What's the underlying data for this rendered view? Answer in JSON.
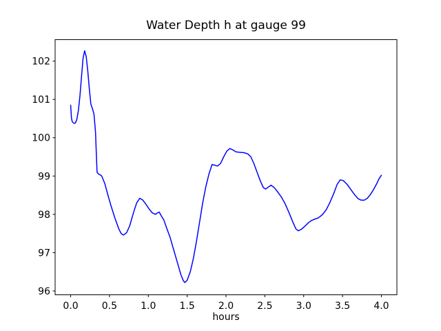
{
  "chart_data": {
    "type": "line",
    "title": "Water Depth h at gauge 99",
    "xlabel": "hours",
    "ylabel": "",
    "grid": false,
    "legend": "none",
    "line_color": "#0000ff",
    "axis_color": "#000000",
    "xlim": [
      -0.2,
      4.2
    ],
    "ylim": [
      95.9,
      102.56
    ],
    "x_ticks": [
      "0.0",
      "0.5",
      "1.0",
      "1.5",
      "2.0",
      "2.5",
      "3.0",
      "3.5",
      "4.0"
    ],
    "x_tick_values": [
      0.0,
      0.5,
      1.0,
      1.5,
      2.0,
      2.5,
      3.0,
      3.5,
      4.0
    ],
    "y_ticks": [
      "96",
      "97",
      "98",
      "99",
      "100",
      "101",
      "102"
    ],
    "y_tick_values": [
      96,
      97,
      98,
      99,
      100,
      101,
      102
    ],
    "series": [
      {
        "name": "h",
        "points": [
          [
            0.0,
            100.85
          ],
          [
            0.01,
            100.52
          ],
          [
            0.02,
            100.42
          ],
          [
            0.04,
            100.38
          ],
          [
            0.06,
            100.38
          ],
          [
            0.08,
            100.48
          ],
          [
            0.1,
            100.72
          ],
          [
            0.12,
            101.1
          ],
          [
            0.14,
            101.6
          ],
          [
            0.16,
            102.08
          ],
          [
            0.18,
            102.27
          ],
          [
            0.2,
            102.12
          ],
          [
            0.22,
            101.75
          ],
          [
            0.24,
            101.28
          ],
          [
            0.26,
            100.88
          ],
          [
            0.28,
            100.76
          ],
          [
            0.3,
            100.62
          ],
          [
            0.32,
            100.15
          ],
          [
            0.33,
            99.6
          ],
          [
            0.34,
            99.1
          ],
          [
            0.36,
            99.05
          ],
          [
            0.38,
            99.03
          ],
          [
            0.4,
            99.0
          ],
          [
            0.44,
            98.8
          ],
          [
            0.48,
            98.5
          ],
          [
            0.52,
            98.22
          ],
          [
            0.57,
            97.9
          ],
          [
            0.62,
            97.62
          ],
          [
            0.65,
            97.5
          ],
          [
            0.68,
            97.46
          ],
          [
            0.72,
            97.52
          ],
          [
            0.76,
            97.7
          ],
          [
            0.81,
            98.05
          ],
          [
            0.85,
            98.3
          ],
          [
            0.89,
            98.42
          ],
          [
            0.93,
            98.37
          ],
          [
            0.97,
            98.26
          ],
          [
            1.01,
            98.14
          ],
          [
            1.05,
            98.04
          ],
          [
            1.09,
            98.0
          ],
          [
            1.12,
            98.04
          ],
          [
            1.14,
            98.06
          ],
          [
            1.17,
            97.95
          ],
          [
            1.2,
            97.85
          ],
          [
            1.24,
            97.62
          ],
          [
            1.28,
            97.4
          ],
          [
            1.33,
            97.05
          ],
          [
            1.38,
            96.7
          ],
          [
            1.42,
            96.42
          ],
          [
            1.45,
            96.27
          ],
          [
            1.47,
            96.22
          ],
          [
            1.5,
            96.28
          ],
          [
            1.54,
            96.5
          ],
          [
            1.58,
            96.85
          ],
          [
            1.62,
            97.3
          ],
          [
            1.66,
            97.8
          ],
          [
            1.7,
            98.3
          ],
          [
            1.74,
            98.72
          ],
          [
            1.78,
            99.05
          ],
          [
            1.82,
            99.3
          ],
          [
            1.86,
            99.28
          ],
          [
            1.89,
            99.26
          ],
          [
            1.93,
            99.33
          ],
          [
            1.97,
            99.5
          ],
          [
            2.01,
            99.65
          ],
          [
            2.05,
            99.72
          ],
          [
            2.09,
            99.68
          ],
          [
            2.13,
            99.63
          ],
          [
            2.18,
            99.62
          ],
          [
            2.23,
            99.61
          ],
          [
            2.28,
            99.58
          ],
          [
            2.32,
            99.5
          ],
          [
            2.36,
            99.32
          ],
          [
            2.4,
            99.1
          ],
          [
            2.44,
            98.88
          ],
          [
            2.48,
            98.7
          ],
          [
            2.51,
            98.66
          ],
          [
            2.55,
            98.72
          ],
          [
            2.58,
            98.76
          ],
          [
            2.62,
            98.7
          ],
          [
            2.66,
            98.6
          ],
          [
            2.71,
            98.46
          ],
          [
            2.76,
            98.28
          ],
          [
            2.81,
            98.05
          ],
          [
            2.86,
            97.8
          ],
          [
            2.9,
            97.62
          ],
          [
            2.93,
            97.57
          ],
          [
            2.97,
            97.61
          ],
          [
            3.01,
            97.68
          ],
          [
            3.06,
            97.78
          ],
          [
            3.1,
            97.84
          ],
          [
            3.15,
            97.88
          ],
          [
            3.19,
            97.91
          ],
          [
            3.24,
            97.99
          ],
          [
            3.29,
            98.12
          ],
          [
            3.34,
            98.32
          ],
          [
            3.39,
            98.56
          ],
          [
            3.43,
            98.78
          ],
          [
            3.47,
            98.9
          ],
          [
            3.51,
            98.88
          ],
          [
            3.56,
            98.78
          ],
          [
            3.61,
            98.64
          ],
          [
            3.66,
            98.5
          ],
          [
            3.7,
            98.41
          ],
          [
            3.74,
            98.37
          ],
          [
            3.78,
            98.37
          ],
          [
            3.82,
            98.42
          ],
          [
            3.86,
            98.52
          ],
          [
            3.9,
            98.65
          ],
          [
            3.94,
            98.8
          ],
          [
            3.97,
            98.93
          ],
          [
            4.0,
            99.02
          ]
        ]
      }
    ]
  }
}
